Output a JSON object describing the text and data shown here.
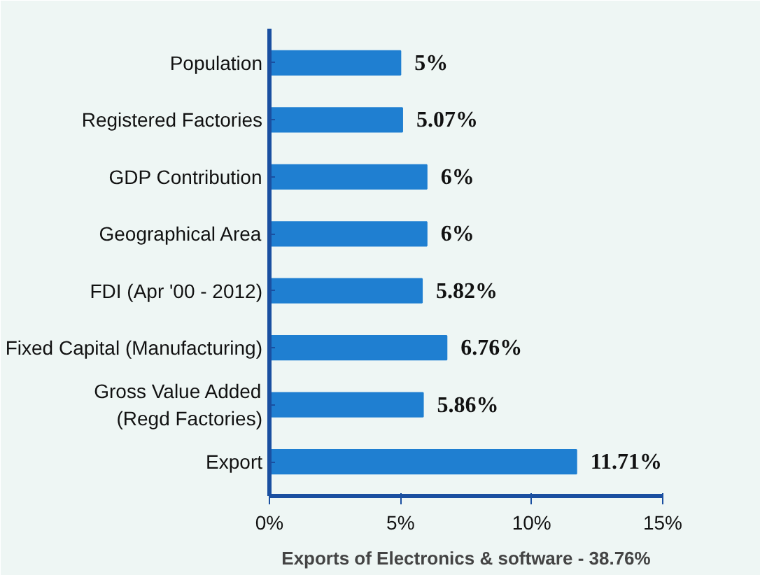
{
  "chart_data": {
    "type": "bar",
    "orientation": "horizontal",
    "categories": [
      "Population",
      "Registered Factories",
      "GDP Contribution",
      "Geographical Area",
      "FDI (Apr '00 - 2012)",
      "Fixed Capital (Manufacturing)",
      "Gross Value Added (Regd Factories)",
      "Export"
    ],
    "values": [
      5,
      5.07,
      6,
      6,
      5.82,
      6.76,
      5.86,
      11.71
    ],
    "value_labels": [
      "5%",
      "5.07%",
      "6%",
      "6%",
      "5.82%",
      "6.76%",
      "5.86%",
      "11.71%"
    ],
    "color": "#1f7fd1",
    "xlim": [
      0,
      15
    ],
    "xticks": [
      {
        "value": 0,
        "label": "0%"
      },
      {
        "value": 5,
        "label": "5%"
      },
      {
        "value": 10,
        "label": "10%"
      },
      {
        "value": 15,
        "label": "15%"
      }
    ],
    "grid": false,
    "annotations": [
      "Exports of Electronics & software - 38.76%"
    ]
  }
}
